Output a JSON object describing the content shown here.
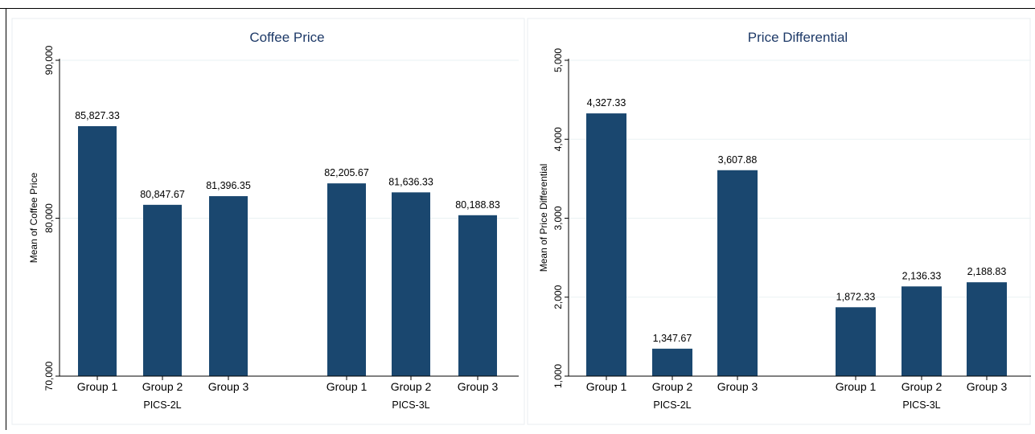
{
  "colors": {
    "bar": "#1a476f",
    "title": "#1e3a68",
    "axis": "#000000",
    "grid": "#eaf2f3",
    "panel_border": "#e8eef0",
    "outer_border": "#000000"
  },
  "chart_data": [
    {
      "type": "bar",
      "title": "Coffee Price",
      "ylabel": "Mean of Coffee Price",
      "ylim": [
        70000,
        90000
      ],
      "yticks": [
        70000,
        80000,
        90000
      ],
      "ytick_labels": [
        "70,000",
        "80,000",
        "90,000"
      ],
      "groups": [
        "PICS-2L",
        "PICS-3L"
      ],
      "categories": [
        "Group 1",
        "Group 2",
        "Group 3"
      ],
      "values": [
        [
          85827.33,
          80847.67,
          81396.35
        ],
        [
          82205.67,
          81636.33,
          80188.83
        ]
      ],
      "value_labels": [
        [
          "85,827.33",
          "80,847.67",
          "81,396.35"
        ],
        [
          "82,205.67",
          "81,636.33",
          "80,188.83"
        ]
      ],
      "grid": true
    },
    {
      "type": "bar",
      "title": "Price Differential",
      "ylabel": "Mean of Price Differential",
      "ylim": [
        1000,
        5000
      ],
      "yticks": [
        1000,
        2000,
        3000,
        4000,
        5000
      ],
      "ytick_labels": [
        "1,000",
        "2,000",
        "3,000",
        "4,000",
        "5,000"
      ],
      "groups": [
        "PICS-2L",
        "PICS-3L"
      ],
      "categories": [
        "Group 1",
        "Group 2",
        "Group 3"
      ],
      "values": [
        [
          4327.33,
          1347.67,
          3607.88
        ],
        [
          1872.33,
          2136.33,
          2188.83
        ]
      ],
      "value_labels": [
        [
          "4,327.33",
          "1,347.67",
          "3,607.88"
        ],
        [
          "1,872.33",
          "2,136.33",
          "2,188.83"
        ]
      ],
      "grid": true
    }
  ]
}
